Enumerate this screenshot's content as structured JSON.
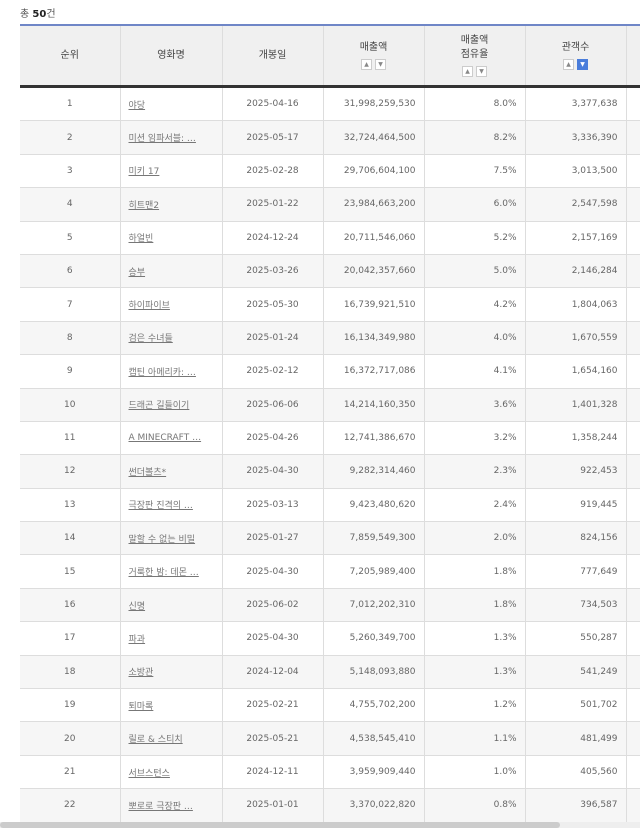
{
  "total": {
    "prefix": "총 ",
    "count": "50",
    "suffix": "건"
  },
  "headers": {
    "rank": "순위",
    "title": "영화명",
    "release": "개봉일",
    "sales": "매출액",
    "share_l1": "매출액",
    "share_l2": "점유율",
    "audience": "관객수"
  },
  "sort_icons": {
    "up": "▲",
    "down": "▼"
  },
  "accent_color": "#4a7ddb",
  "rows": [
    {
      "rank": "1",
      "title": "야당",
      "release": "2025-04-16",
      "sales": "31,998,259,530",
      "share": "8.0%",
      "audience": "3,377,638"
    },
    {
      "rank": "2",
      "title": "미션 임파서블: …",
      "release": "2025-05-17",
      "sales": "32,724,464,500",
      "share": "8.2%",
      "audience": "3,336,390"
    },
    {
      "rank": "3",
      "title": "미키 17",
      "release": "2025-02-28",
      "sales": "29,706,604,100",
      "share": "7.5%",
      "audience": "3,013,500"
    },
    {
      "rank": "4",
      "title": "히트맨2",
      "release": "2025-01-22",
      "sales": "23,984,663,200",
      "share": "6.0%",
      "audience": "2,547,598"
    },
    {
      "rank": "5",
      "title": "하얼빈",
      "release": "2024-12-24",
      "sales": "20,711,546,060",
      "share": "5.2%",
      "audience": "2,157,169"
    },
    {
      "rank": "6",
      "title": "승부",
      "release": "2025-03-26",
      "sales": "20,042,357,660",
      "share": "5.0%",
      "audience": "2,146,284"
    },
    {
      "rank": "7",
      "title": "하이파이브",
      "release": "2025-05-30",
      "sales": "16,739,921,510",
      "share": "4.2%",
      "audience": "1,804,063"
    },
    {
      "rank": "8",
      "title": "검은 수녀들",
      "release": "2025-01-24",
      "sales": "16,134,349,980",
      "share": "4.0%",
      "audience": "1,670,559"
    },
    {
      "rank": "9",
      "title": "캡틴 아메리카: …",
      "release": "2025-02-12",
      "sales": "16,372,717,086",
      "share": "4.1%",
      "audience": "1,654,160"
    },
    {
      "rank": "10",
      "title": "드래곤 길들이기",
      "release": "2025-06-06",
      "sales": "14,214,160,350",
      "share": "3.6%",
      "audience": "1,401,328"
    },
    {
      "rank": "11",
      "title": "A MINECRAFT …",
      "release": "2025-04-26",
      "sales": "12,741,386,670",
      "share": "3.2%",
      "audience": "1,358,244"
    },
    {
      "rank": "12",
      "title": "썬더볼츠*",
      "release": "2025-04-30",
      "sales": "9,282,314,460",
      "share": "2.3%",
      "audience": "922,453"
    },
    {
      "rank": "13",
      "title": "극장판 진격의 …",
      "release": "2025-03-13",
      "sales": "9,423,480,620",
      "share": "2.4%",
      "audience": "919,445"
    },
    {
      "rank": "14",
      "title": "말할 수 없는 비밀",
      "release": "2025-01-27",
      "sales": "7,859,549,300",
      "share": "2.0%",
      "audience": "824,156"
    },
    {
      "rank": "15",
      "title": "거룩한 밤: 데몬 …",
      "release": "2025-04-30",
      "sales": "7,205,989,400",
      "share": "1.8%",
      "audience": "777,649"
    },
    {
      "rank": "16",
      "title": "신명",
      "release": "2025-06-02",
      "sales": "7,012,202,310",
      "share": "1.8%",
      "audience": "734,503"
    },
    {
      "rank": "17",
      "title": "파과",
      "release": "2025-04-30",
      "sales": "5,260,349,700",
      "share": "1.3%",
      "audience": "550,287"
    },
    {
      "rank": "18",
      "title": "소방관",
      "release": "2024-12-04",
      "sales": "5,148,093,880",
      "share": "1.3%",
      "audience": "541,249"
    },
    {
      "rank": "19",
      "title": "퇴마록",
      "release": "2025-02-21",
      "sales": "4,755,702,200",
      "share": "1.2%",
      "audience": "501,702"
    },
    {
      "rank": "20",
      "title": "릴로 & 스티치",
      "release": "2025-05-21",
      "sales": "4,538,545,410",
      "share": "1.1%",
      "audience": "481,499"
    },
    {
      "rank": "21",
      "title": "서브스턴스",
      "release": "2024-12-11",
      "sales": "3,959,909,440",
      "share": "1.0%",
      "audience": "405,560"
    },
    {
      "rank": "22",
      "title": "뽀로로 극장판 …",
      "release": "2025-01-01",
      "sales": "3,370,022,820",
      "share": "0.8%",
      "audience": "396,587"
    }
  ]
}
